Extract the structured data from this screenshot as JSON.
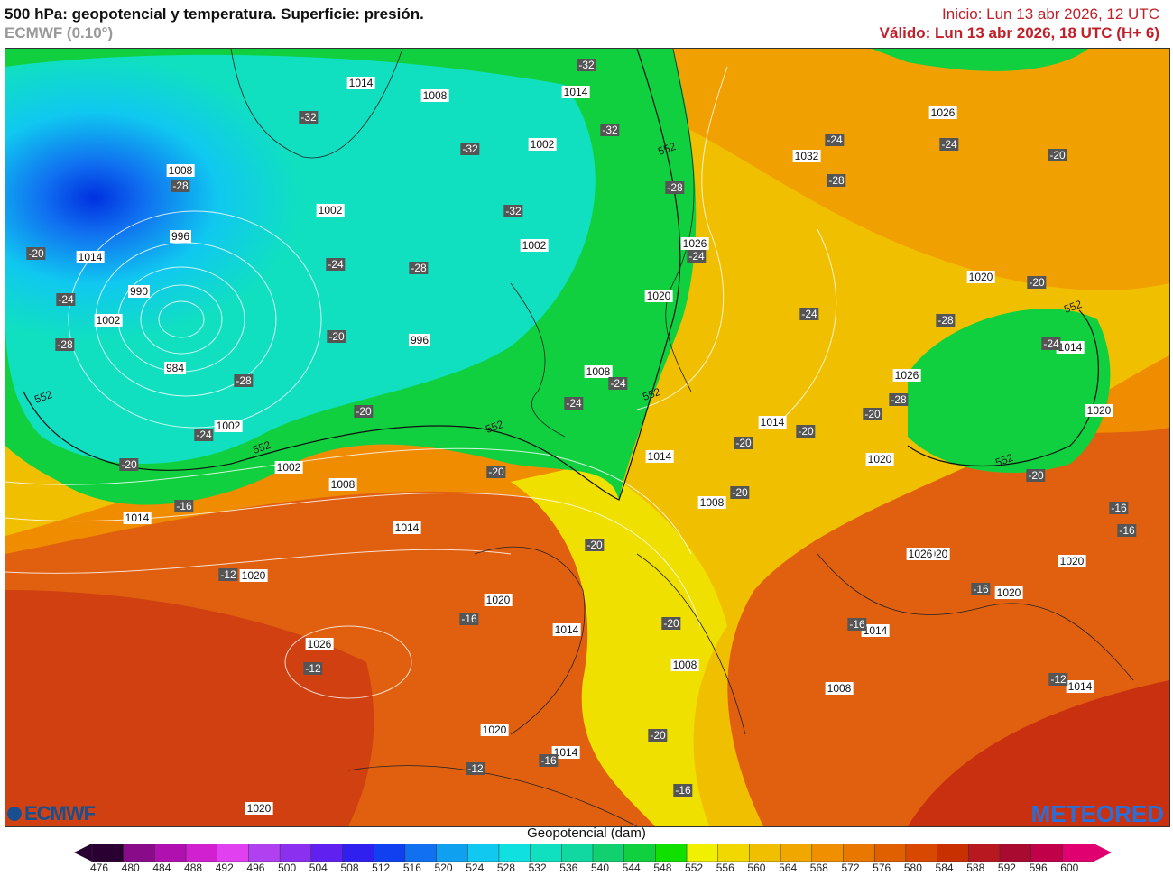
{
  "header": {
    "title": "500 hPa: geopotencial y temperatura. Superficie: presión.",
    "subtitle": "ECMWF (0.10°)",
    "init": "Inicio: Lun 13 abr 2026, 12 UTC",
    "valid": "Válido: Lun 13 abr 2026, 18 UTC (H+ 6)"
  },
  "logos": {
    "ecmwf": "ECMWF",
    "meteored": "METEORED"
  },
  "colorbar": {
    "title": "Geopotencial (dam)",
    "ticks": [
      "476",
      "480",
      "484",
      "488",
      "492",
      "496",
      "500",
      "504",
      "508",
      "512",
      "516",
      "520",
      "524",
      "528",
      "532",
      "536",
      "540",
      "544",
      "548",
      "552",
      "556",
      "560",
      "564",
      "568",
      "572",
      "576",
      "580",
      "584",
      "588",
      "592",
      "596",
      "600"
    ],
    "colors": [
      "#2a0033",
      "#8a0b8a",
      "#b010b0",
      "#d020d0",
      "#e040f0",
      "#b040f0",
      "#8c30f0",
      "#6020f0",
      "#3020f0",
      "#1040f0",
      "#1070f0",
      "#10a0f0",
      "#10c8f0",
      "#10e0e0",
      "#10e0c0",
      "#10d8a0",
      "#10d070",
      "#10d040",
      "#10e000",
      "#f0f000",
      "#f0d800",
      "#f0c000",
      "#f0a800",
      "#f09000",
      "#e87800",
      "#e06000",
      "#d84800",
      "#c83000",
      "#b81820",
      "#a80a30",
      "#c00048",
      "#e00070"
    ]
  },
  "map_labels": {
    "pressure": [
      "1014",
      "1008",
      "1014",
      "1002",
      "1008",
      "1002",
      "996",
      "1014",
      "1002",
      "990",
      "984",
      "1002",
      "996",
      "1008",
      "1020",
      "1002",
      "1008",
      "1014",
      "1014",
      "1020",
      "1014",
      "1020",
      "1014",
      "1026",
      "1008",
      "1020",
      "1014",
      "1026",
      "1008",
      "1014",
      "1008",
      "1020",
      "1020",
      "1020",
      "1014",
      "1020",
      "1032",
      "1026",
      "1026",
      "1020",
      "1020",
      "1014",
      "1014",
      "1026",
      "1020",
      "1002"
    ],
    "temperature": [
      "-32",
      "-32",
      "-32",
      "-32",
      "-28",
      "-32",
      "-28",
      "-24",
      "-28",
      "-20",
      "-24",
      "-28",
      "-20",
      "-24",
      "-28",
      "-24",
      "-20",
      "-16",
      "-20",
      "-16",
      "-12",
      "-20",
      "-16",
      "-20",
      "-12",
      "-16",
      "-20",
      "-12",
      "-16",
      "-16",
      "-20",
      "-20",
      "-20",
      "-24",
      "-20",
      "-24",
      "-28",
      "-24",
      "-28",
      "-24",
      "-28",
      "-20",
      "-20",
      "-24",
      "-20",
      "-16",
      "-12",
      "-16",
      "-24",
      "-20"
    ],
    "contour_552": "552"
  }
}
